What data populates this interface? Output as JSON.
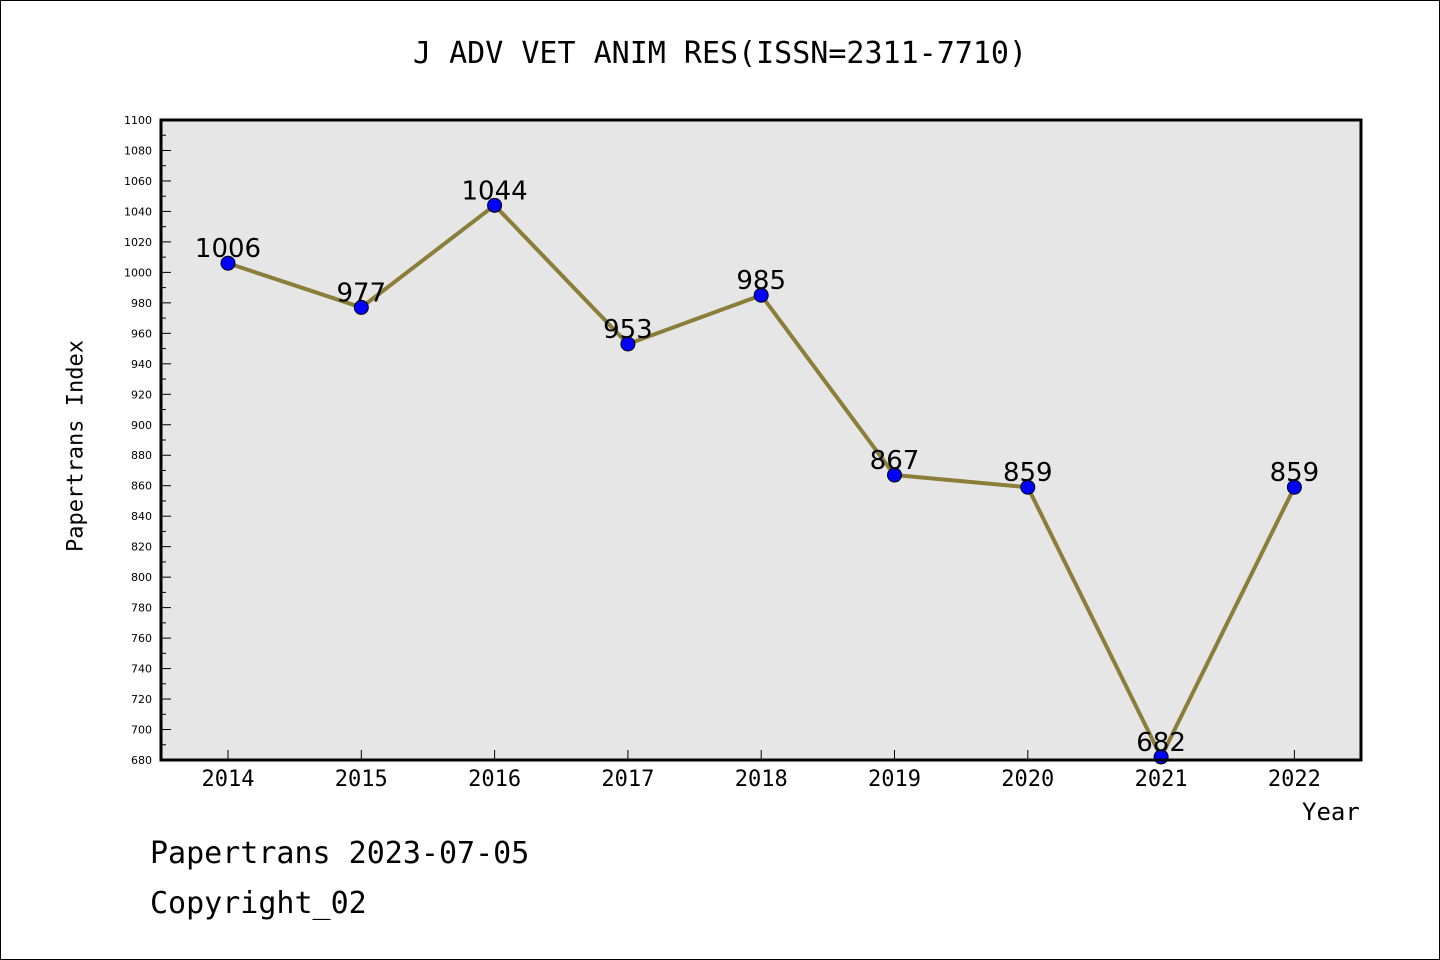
{
  "chart_data": {
    "type": "line",
    "title": "J ADV VET ANIM RES(ISSN=2311-7710)",
    "xlabel": "Year",
    "ylabel": "Papertrans Index",
    "categories": [
      "2014",
      "2015",
      "2016",
      "2017",
      "2018",
      "2019",
      "2020",
      "2021",
      "2022"
    ],
    "series": [
      {
        "values": [
          1006,
          977,
          1044,
          953,
          985,
          867,
          859,
          682,
          859
        ]
      }
    ],
    "data_labels": [
      "1006",
      "977",
      "1044",
      "953",
      "985",
      "867",
      "859",
      "682",
      "859"
    ],
    "ylim": [
      680,
      1100
    ],
    "yticks": [
      "680",
      "700",
      "720",
      "740",
      "760",
      "780",
      "800",
      "820",
      "840",
      "860",
      "880",
      "900",
      "920",
      "940",
      "960",
      "980",
      "1000",
      "1020",
      "1040",
      "1060",
      "1080",
      "1100"
    ],
    "grid": false,
    "line_color": "#8b7d3a",
    "marker_color": "#0000ff",
    "plot_background": "#e6e6e6"
  },
  "footer": {
    "line1": "Papertrans 2023-07-05",
    "line2": "Copyright_02"
  }
}
